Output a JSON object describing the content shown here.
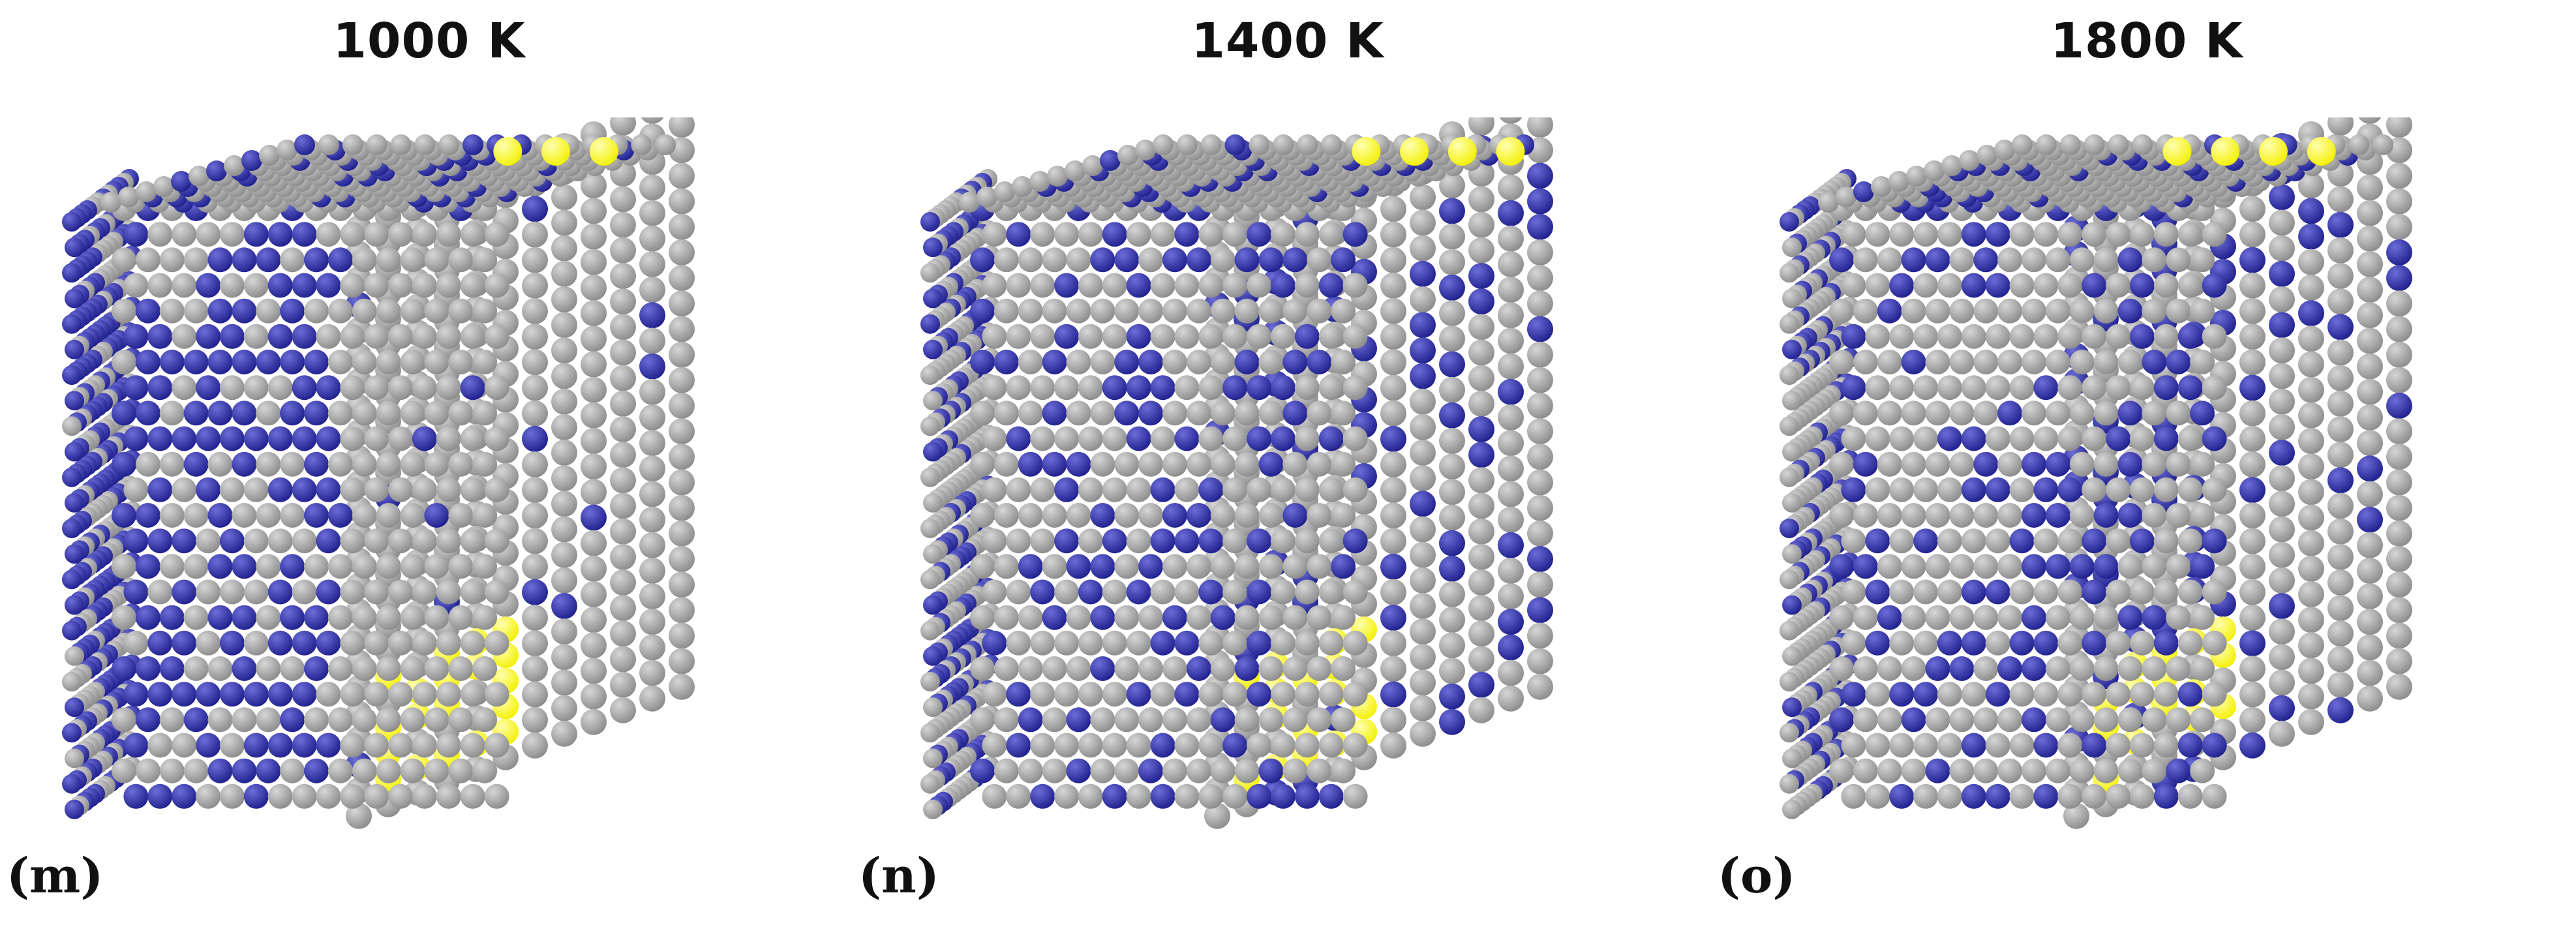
{
  "panels": [
    {
      "id": "m",
      "title": "1000 K",
      "label": "(m)",
      "seed": 11,
      "blue_fraction_left": 0.62,
      "blue_fraction_right": 0.05,
      "yellow_top": [
        [
          14,
          12
        ],
        [
          16,
          12
        ],
        [
          18,
          12
        ]
      ],
      "yellow_bottom_cluster": true
    },
    {
      "id": "n",
      "title": "1400 K",
      "label": "(n)",
      "seed": 23,
      "blue_fraction_left": 0.32,
      "blue_fraction_right": 0.22,
      "yellow_top": [
        [
          14,
          12
        ],
        [
          16,
          12
        ],
        [
          18,
          12
        ],
        [
          20,
          12
        ]
      ],
      "yellow_bottom_cluster": true
    },
    {
      "id": "o",
      "title": "1800 K",
      "label": "(o)",
      "seed": 37,
      "blue_fraction_left": 0.28,
      "blue_fraction_right": 0.26,
      "yellow_top": [
        [
          12,
          12
        ],
        [
          14,
          12
        ],
        [
          16,
          12
        ],
        [
          18,
          12
        ]
      ],
      "yellow_bottom_cluster": true
    }
  ],
  "colors": {
    "gray_atom": "#8a8a8a",
    "gray_atom_highlight": "#d6d6d6",
    "blue_atom": "#1e1e8c",
    "blue_atom_highlight": "#6d6dd8",
    "yellow_atom": "#f3f000",
    "yellow_atom_highlight": "#ffffb0"
  }
}
